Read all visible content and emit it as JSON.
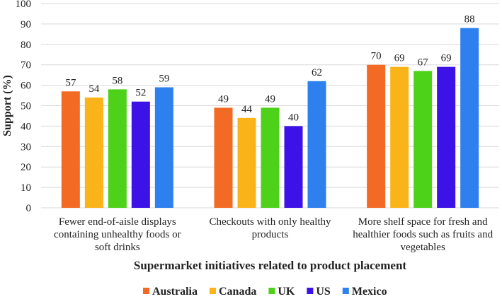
{
  "chart_data": {
    "type": "bar",
    "title": "",
    "xlabel": "Supermarket initiatives related to product placement",
    "ylabel": "Support (%)",
    "ylim": [
      0,
      100
    ],
    "yticks": [
      0,
      10,
      20,
      30,
      40,
      50,
      60,
      70,
      80,
      90,
      100
    ],
    "grid": true,
    "legend_position": "bottom",
    "categories": [
      [
        "Fewer end-of-aisle displays",
        "containing unhealthy foods or",
        "soft drinks"
      ],
      [
        "Checkouts with only healthy",
        "products"
      ],
      [
        "More shelf space for fresh and",
        "healthier foods such as fruits and",
        "vegetables"
      ]
    ],
    "series": [
      {
        "name": "Australia",
        "color": "#F26A24",
        "values": [
          57,
          49,
          70
        ]
      },
      {
        "name": "Canada",
        "color": "#FBB31A",
        "values": [
          54,
          44,
          69
        ]
      },
      {
        "name": "UK",
        "color": "#4ED219",
        "values": [
          58,
          49,
          67
        ]
      },
      {
        "name": "US",
        "color": "#3D12E6",
        "values": [
          52,
          40,
          69
        ]
      },
      {
        "name": "Mexico",
        "color": "#2E80EE",
        "values": [
          59,
          62,
          88
        ]
      }
    ]
  }
}
